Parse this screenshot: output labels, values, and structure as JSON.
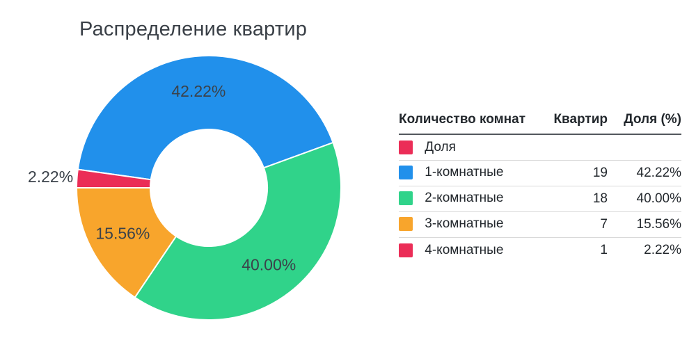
{
  "title": "Распределение квартир",
  "chart_data": {
    "type": "pie",
    "donut": true,
    "title": "Распределение квартир",
    "series_name": "Доля",
    "start_angle": 172,
    "clockwise": true,
    "legend_position": "right-table",
    "slices": [
      {
        "label": "1-комнатные",
        "value": 19,
        "pct": 42.22,
        "percent_label": "42.22%",
        "color": "#2190EB"
      },
      {
        "label": "2-комнатные",
        "value": 18,
        "pct": 40.0,
        "percent_label": "40.00%",
        "color": "#30D38A"
      },
      {
        "label": "3-комнатные",
        "value": 7,
        "pct": 15.56,
        "percent_label": "15.56%",
        "color": "#F8A52C"
      },
      {
        "label": "4-комнатные",
        "value": 1,
        "pct": 2.22,
        "percent_label": "2.22%",
        "color": "#EB2D57"
      }
    ]
  },
  "table": {
    "headers": {
      "rooms": "Количество комнат",
      "count": "Квартир",
      "share": "Доля (%)"
    },
    "rows": [
      {
        "label": "Доля",
        "count": "",
        "share": "",
        "color": "#EB2D57"
      },
      {
        "label": "1-комнатные",
        "count": "19",
        "share": "42.22%",
        "color": "#2190EB"
      },
      {
        "label": "2-комнатные",
        "count": "18",
        "share": "40.00%",
        "color": "#30D38A"
      },
      {
        "label": "3-комнатные",
        "count": "7",
        "share": "15.56%",
        "color": "#F8A52C"
      },
      {
        "label": "4-комнатные",
        "count": "1",
        "share": "2.22%",
        "color": "#EB2D57"
      }
    ]
  },
  "colors": {
    "blue": "#2190EB",
    "green": "#30D38A",
    "orange": "#F8A52C",
    "crimson": "#EB2D57",
    "title_text": "#3a4047",
    "table_text": "#23282d",
    "header_rule": "#53585d",
    "row_rule": "#d9d9d9"
  }
}
